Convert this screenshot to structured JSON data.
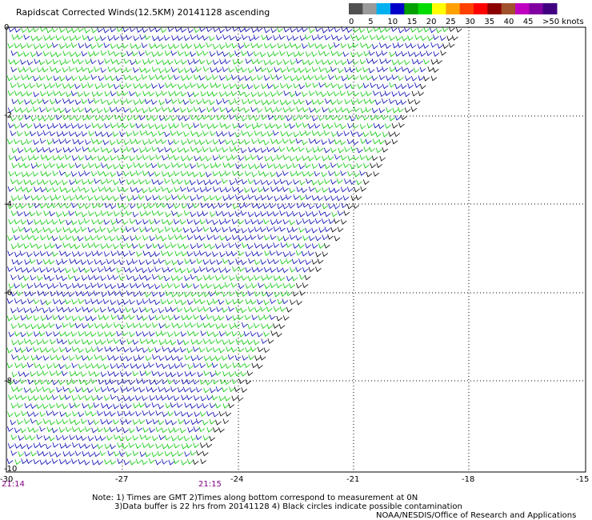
{
  "title": "Rapidscat Corrected Winds(12.5KM) 20141128 ascending",
  "colorbar": {
    "colors": [
      "#505050",
      "#9a9a9a",
      "#00b0f0",
      "#0000c8",
      "#00a000",
      "#00dc00",
      "#ffff00",
      "#ffa000",
      "#ff4000",
      "#ff0000",
      "#8b0000",
      "#a0522d",
      "#c000c0",
      "#8000a0",
      "#400080"
    ],
    "labels": [
      "0",
      "5",
      "10",
      "15",
      "20",
      "25",
      "30",
      "35",
      "40",
      "45",
      ">50 knots"
    ]
  },
  "axes": {
    "x_ticks": [
      "-30",
      "-27",
      "-24",
      "-21",
      "-18",
      "-15"
    ],
    "y_ticks": [
      "0",
      "-2",
      "-4",
      "-6",
      "-8",
      "-10"
    ]
  },
  "times": [
    "21:14",
    "21:15"
  ],
  "notes": {
    "line1": "Note: 1) Times are GMT 2)Times along bottom correspond to measurement at 0N",
    "line2": "3)Data buffer is 22 hrs from 20141128 4) Black circles indicate possible contamination",
    "line3": "NOAA/NESDIS/Office of Research and Applications"
  },
  "wind_colors": {
    "green": "#00c800",
    "blue": "#0000b4",
    "black": "#000000"
  }
}
